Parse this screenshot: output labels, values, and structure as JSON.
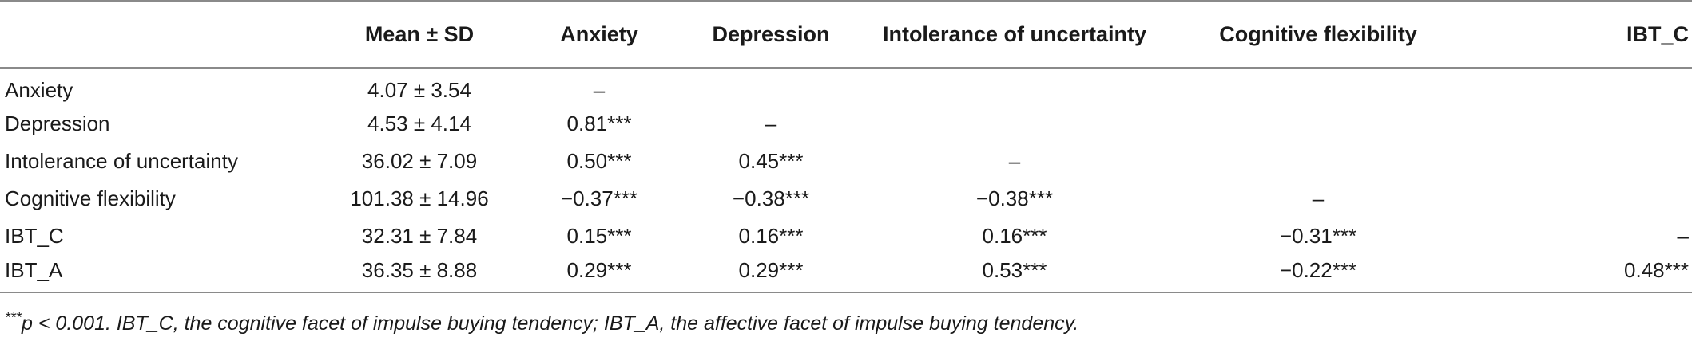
{
  "table": {
    "headers": [
      "",
      "Mean ± SD",
      "Anxiety",
      "Depression",
      "Intolerance of uncertainty",
      "Cognitive flexibility",
      "IBT_C"
    ],
    "rows": [
      {
        "label": "Anxiety",
        "cells": [
          "4.07 ± 3.54",
          "–",
          "",
          "",
          "",
          ""
        ]
      },
      {
        "label": "Depression",
        "cells": [
          "4.53 ± 4.14",
          "0.81***",
          "–",
          "",
          "",
          ""
        ]
      },
      {
        "label": "Intolerance of uncertainty",
        "cells": [
          "36.02 ± 7.09",
          "0.50***",
          "0.45***",
          "–",
          "",
          ""
        ]
      },
      {
        "label": "Cognitive flexibility",
        "cells": [
          "101.38 ± 14.96",
          "−0.37***",
          "−0.38***",
          "−0.38***",
          "–",
          ""
        ]
      },
      {
        "label": "IBT_C",
        "cells": [
          "32.31 ± 7.84",
          "0.15***",
          "0.16***",
          "0.16***",
          "−0.31***",
          "–"
        ]
      },
      {
        "label": "IBT_A",
        "cells": [
          "36.35 ± 8.88",
          "0.29***",
          "0.29***",
          "0.53***",
          "−0.22***",
          "0.48***"
        ]
      }
    ]
  },
  "footnote": {
    "marker": "***",
    "text": "p < 0.001. IBT_C, the cognitive facet of impulse buying tendency; IBT_A, the affective facet of impulse buying tendency."
  }
}
